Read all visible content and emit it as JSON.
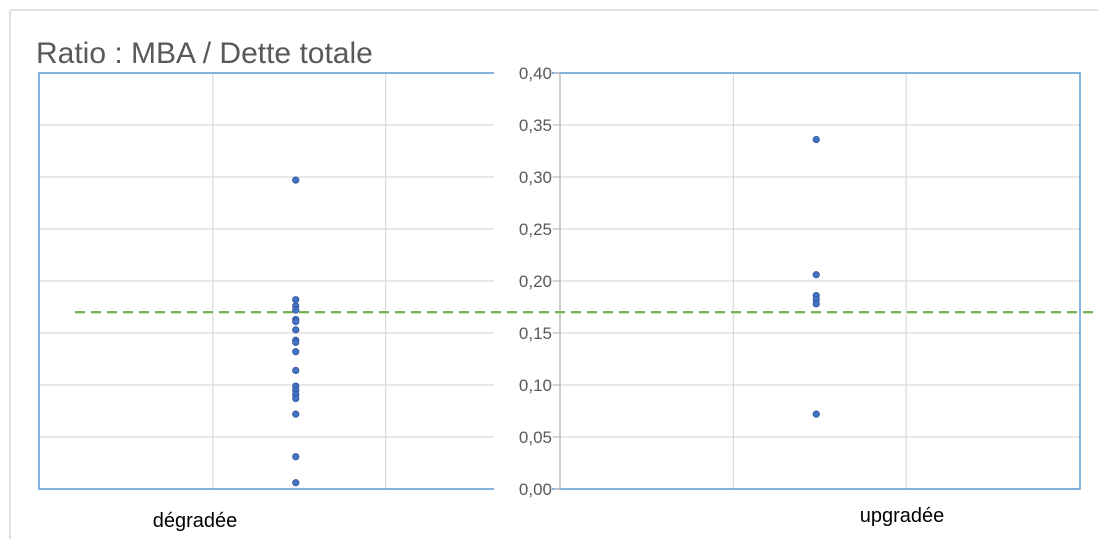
{
  "chart_data": {
    "type": "scatter",
    "title": "Ratio : MBA / Dette totale",
    "xlabel": "",
    "ylabel": "",
    "categories": [
      "dégradée",
      "upgradée"
    ],
    "ylim": [
      0,
      0.4
    ],
    "y_ticks": [
      "0,00",
      "0,05",
      "0,10",
      "0,15",
      "0,20",
      "0,25",
      "0,30",
      "0,35",
      "0,40"
    ],
    "grid": true,
    "legend": "none",
    "series": [
      {
        "category": "dégradée",
        "values": [
          0.297,
          0.182,
          0.176,
          0.172,
          0.163,
          0.161,
          0.153,
          0.143,
          0.141,
          0.132,
          0.114,
          0.099,
          0.095,
          0.091,
          0.087,
          0.072,
          0.031,
          0.006
        ]
      },
      {
        "category": "upgradée",
        "values": [
          0.336,
          0.206,
          0.186,
          0.182,
          0.178,
          0.072
        ]
      }
    ],
    "reference_line": {
      "y": 0.17,
      "style": "dashed"
    },
    "colors": {
      "marker": "#4472C4",
      "marker_edge": "#2F5597",
      "reference_line": "#70AD47",
      "plot_border": "#5B9BD5",
      "grid": "#D9D9D9",
      "axis": "#BFBFBF",
      "frame": "#D9D9D9",
      "title": "#595959",
      "ticks": "#595959"
    }
  }
}
